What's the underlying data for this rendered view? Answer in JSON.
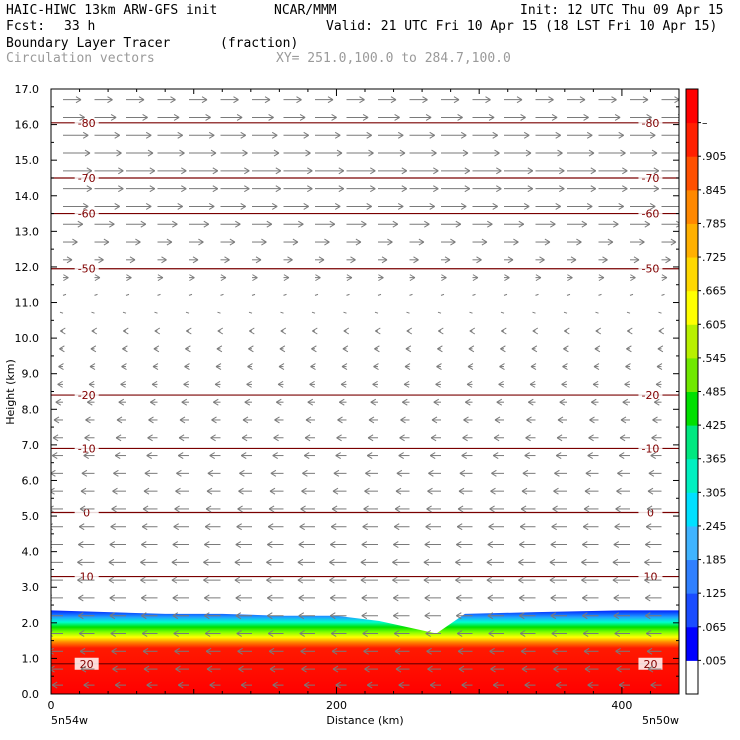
{
  "header": {
    "model": "HAIC-HIWC 13km ARW-GFS init",
    "org": "NCAR/MMM",
    "init": "Init: 12 UTC Thu 09 Apr 15",
    "fcst_label": "Fcst:",
    "fcst_value": "33 h",
    "valid": "Valid: 21 UTC Fri 10 Apr 15 (18 LST Fri 10 Apr 15)",
    "field": "Boundary Layer Tracer",
    "units": "(fraction)",
    "vectors": "Circulation vectors",
    "xy": "XY= 251.0,100.0 to 284.7,100.0"
  },
  "chart_data": {
    "type": "heatmap",
    "xlabel": "Distance (km)",
    "ylabel": "Height (km)",
    "xlim": [
      0,
      440
    ],
    "ylim": [
      0,
      17
    ],
    "x_ticks": [
      "0",
      "200",
      "400"
    ],
    "y_ticks": [
      "0.0",
      "1.0",
      "2.0",
      "3.0",
      "4.0",
      "5.0",
      "6.0",
      "7.0",
      "8.0",
      "9.0",
      "10.0",
      "11.0",
      "12.0",
      "13.0",
      "14.0",
      "15.0",
      "16.0",
      "17.0"
    ],
    "x_end_left": "5n54w",
    "x_end_right": "5n50w",
    "colorbar": {
      "labels": [
        ".005",
        ".065",
        ".125",
        ".185",
        ".245",
        ".305",
        ".365",
        ".425",
        ".485",
        ".545",
        ".605",
        ".665",
        ".725",
        ".785",
        ".845",
        ".905",
        "–"
      ],
      "colors": [
        "#ffffff",
        "#0000ff",
        "#1a4cff",
        "#3080ff",
        "#40b4ff",
        "#00e0ff",
        "#00f0c0",
        "#00e880",
        "#00e000",
        "#70e800",
        "#b8f000",
        "#ffff00",
        "#ffd800",
        "#ffb000",
        "#ff8800",
        "#ff5000",
        "#ff2000",
        "#ff0000"
      ]
    },
    "contours": [
      {
        "label": "-80",
        "height": 16.05
      },
      {
        "label": "-70",
        "height": 14.5
      },
      {
        "label": "-60",
        "height": 13.5
      },
      {
        "label": "-50",
        "height": 11.95
      },
      {
        "label": "-20",
        "height": 8.4
      },
      {
        "label": "-10",
        "height": 6.9
      },
      {
        "label": "0",
        "height": 5.1
      },
      {
        "label": "10",
        "height": 3.3
      },
      {
        "label": "20",
        "height": 0.85
      }
    ],
    "tracer_profile": [
      {
        "x": 0,
        "top": 2.35
      },
      {
        "x": 40,
        "top": 2.3
      },
      {
        "x": 80,
        "top": 2.25
      },
      {
        "x": 120,
        "top": 2.25
      },
      {
        "x": 160,
        "top": 2.2
      },
      {
        "x": 200,
        "top": 2.2
      },
      {
        "x": 230,
        "top": 2.05
      },
      {
        "x": 270,
        "top": 1.7
      },
      {
        "x": 290,
        "top": 2.25
      },
      {
        "x": 340,
        "top": 2.3
      },
      {
        "x": 400,
        "top": 2.35
      },
      {
        "x": 440,
        "top": 2.35
      }
    ],
    "vector_rows": [
      {
        "z": 16.7,
        "u": 1.0
      },
      {
        "z": 16.2,
        "u": 1.2
      },
      {
        "z": 15.7,
        "u": 1.4
      },
      {
        "z": 15.2,
        "u": 1.5
      },
      {
        "z": 14.7,
        "u": 1.6
      },
      {
        "z": 14.2,
        "u": 1.6
      },
      {
        "z": 13.7,
        "u": 1.4
      },
      {
        "z": 13.2,
        "u": 1.1
      },
      {
        "z": 12.7,
        "u": 0.8
      },
      {
        "z": 12.2,
        "u": 0.5
      },
      {
        "z": 11.7,
        "u": 0.3
      },
      {
        "z": 11.2,
        "u": 0.1
      },
      {
        "z": 10.7,
        "u": -0.1
      },
      {
        "z": 10.2,
        "u": -0.15
      },
      {
        "z": 9.7,
        "u": -0.2
      },
      {
        "z": 9.2,
        "u": -0.25
      },
      {
        "z": 8.7,
        "u": -0.3
      },
      {
        "z": 8.2,
        "u": -0.4
      },
      {
        "z": 7.7,
        "u": -0.5
      },
      {
        "z": 7.2,
        "u": -0.55
      },
      {
        "z": 6.7,
        "u": -0.6
      },
      {
        "z": 6.2,
        "u": -0.7
      },
      {
        "z": 5.7,
        "u": -0.75
      },
      {
        "z": 5.2,
        "u": -0.8
      },
      {
        "z": 4.7,
        "u": -0.85
      },
      {
        "z": 4.2,
        "u": -0.9
      },
      {
        "z": 3.7,
        "u": -0.95
      },
      {
        "z": 3.2,
        "u": -0.95
      },
      {
        "z": 2.7,
        "u": -0.9
      },
      {
        "z": 2.2,
        "u": -0.9
      },
      {
        "z": 1.7,
        "u": -0.85
      },
      {
        "z": 1.2,
        "u": -0.8
      },
      {
        "z": 0.7,
        "u": -0.75
      },
      {
        "z": 0.25,
        "u": -0.6
      }
    ]
  }
}
